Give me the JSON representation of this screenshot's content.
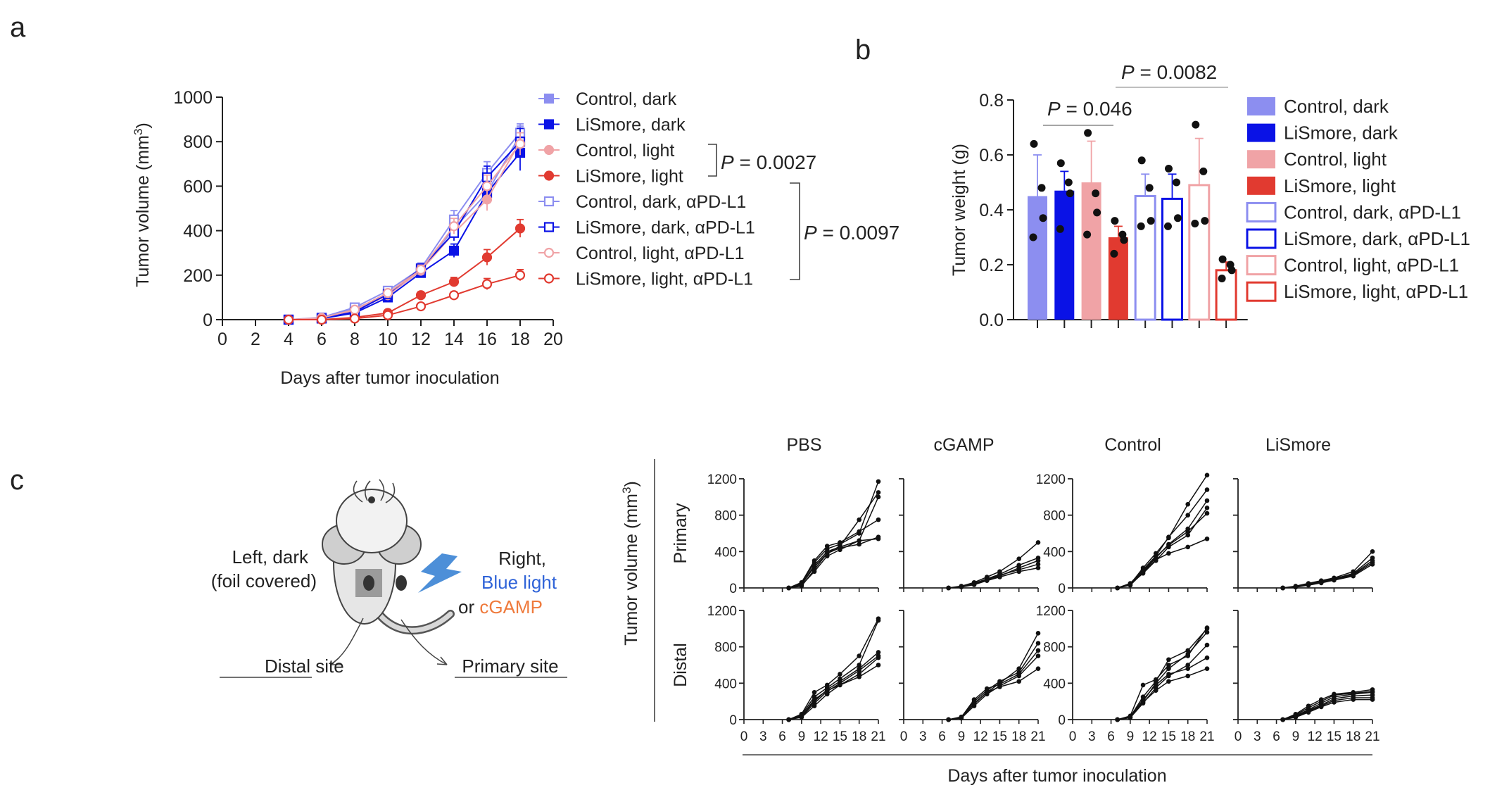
{
  "panel_labels": {
    "a": "a",
    "b": "b",
    "c": "c"
  },
  "colors": {
    "control_dark": "#8c8ef0",
    "lismore_dark": "#0a12e6",
    "control_light": "#f0a3a6",
    "lismore_light": "#e13a30",
    "bolt": "#4d8fd8",
    "orange": "#ef7a3c",
    "blue_text": "#2f63d8"
  },
  "chart_data": [
    {
      "panel": "a",
      "type": "line",
      "xlabel": "Days after tumor inoculation",
      "ylabel_main": "Tumor volume (mm",
      "ylabel_sup": "3",
      "ylabel_close": ")",
      "xlim": [
        0,
        20
      ],
      "ylim": [
        0,
        1000
      ],
      "xticks": [
        0,
        2,
        4,
        6,
        8,
        10,
        12,
        14,
        16,
        18,
        20
      ],
      "yticks": [
        0,
        200,
        400,
        600,
        800,
        1000
      ],
      "x": [
        4,
        6,
        8,
        10,
        12,
        14,
        16,
        18
      ],
      "series": [
        {
          "name": "Control, dark",
          "values": [
            0,
            8,
            50,
            110,
            220,
            410,
            570,
            830
          ],
          "err": [
            0,
            3,
            10,
            20,
            25,
            40,
            50,
            40
          ],
          "color": "#8c8ef0",
          "marker": "square",
          "filled": true
        },
        {
          "name": "LiSmore, dark",
          "values": [
            0,
            5,
            30,
            100,
            210,
            310,
            570,
            750
          ],
          "err": [
            0,
            3,
            8,
            15,
            20,
            30,
            50,
            80
          ],
          "color": "#0a12e6",
          "marker": "square",
          "filled": true
        },
        {
          "name": "Control, light",
          "values": [
            0,
            5,
            40,
            110,
            220,
            390,
            540,
            800
          ],
          "err": [
            0,
            3,
            8,
            15,
            20,
            35,
            50,
            60
          ],
          "color": "#f0a3a6",
          "marker": "circle",
          "filled": true
        },
        {
          "name": "LiSmore, light",
          "values": [
            0,
            0,
            10,
            30,
            110,
            170,
            280,
            410
          ],
          "err": [
            0,
            0,
            5,
            8,
            15,
            20,
            35,
            40
          ],
          "color": "#e13a30",
          "marker": "circle",
          "filled": true
        },
        {
          "name": "Control, dark, αPD-L1",
          "values": [
            0,
            10,
            55,
            130,
            230,
            450,
            660,
            840
          ],
          "err": [
            0,
            3,
            10,
            15,
            25,
            40,
            50,
            40
          ],
          "color": "#8c8ef0",
          "marker": "square",
          "filled": false
        },
        {
          "name": "LiSmore, dark, αPD-L1",
          "values": [
            0,
            6,
            35,
            115,
            230,
            390,
            640,
            800
          ],
          "err": [
            0,
            3,
            8,
            15,
            20,
            35,
            50,
            60
          ],
          "color": "#0a12e6",
          "marker": "square",
          "filled": false
        },
        {
          "name": "Control, light, αPD-L1",
          "values": [
            0,
            8,
            45,
            120,
            225,
            420,
            600,
            790
          ],
          "err": [
            0,
            3,
            8,
            15,
            20,
            35,
            50,
            50
          ],
          "color": "#f0a3a6",
          "marker": "circle",
          "filled": false
        },
        {
          "name": "LiSmore, light, αPD-L1",
          "values": [
            0,
            0,
            5,
            20,
            60,
            110,
            160,
            200
          ],
          "err": [
            0,
            0,
            3,
            5,
            10,
            15,
            25,
            25
          ],
          "color": "#e13a30",
          "marker": "circle",
          "filled": false
        }
      ],
      "annotations": [
        {
          "p": "P",
          "text": " = 0.0027"
        },
        {
          "p": "P",
          "text": " = 0.0097"
        }
      ]
    },
    {
      "panel": "b",
      "type": "bar",
      "ylabel": "Tumor weight (g)",
      "ylim": [
        0,
        0.8
      ],
      "yticks": [
        "0.0",
        "0.2",
        "0.4",
        "0.6",
        "0.8"
      ],
      "categories": [
        "Control, dark",
        "LiSmore, dark",
        "Control, light",
        "LiSmore, light",
        "Control, dark, αPD-L1",
        "LiSmore, dark, αPD-L1",
        "Control, light, αPD-L1",
        "LiSmore, light, αPD-L1"
      ],
      "values": [
        0.45,
        0.47,
        0.5,
        0.3,
        0.45,
        0.44,
        0.49,
        0.18
      ],
      "err": [
        0.15,
        0.07,
        0.15,
        0.04,
        0.08,
        0.09,
        0.17,
        0.03
      ],
      "points": [
        [
          0.64,
          0.48,
          0.37,
          0.3
        ],
        [
          0.57,
          0.5,
          0.46,
          0.33
        ],
        [
          0.68,
          0.46,
          0.39,
          0.31
        ],
        [
          0.36,
          0.31,
          0.29,
          0.24
        ],
        [
          0.58,
          0.48,
          0.36,
          0.34
        ],
        [
          0.55,
          0.5,
          0.37,
          0.34
        ],
        [
          0.71,
          0.54,
          0.36,
          0.35
        ],
        [
          0.22,
          0.2,
          0.18,
          0.15
        ]
      ],
      "colors": [
        "#8c8ef0",
        "#0a12e6",
        "#f0a3a6",
        "#e13a30",
        "#8c8ef0",
        "#0a12e6",
        "#f0a3a6",
        "#e13a30"
      ],
      "filled": [
        true,
        true,
        true,
        true,
        false,
        false,
        false,
        false
      ],
      "annotations": [
        {
          "p": "P",
          "text": " = 0.046"
        },
        {
          "p": "P",
          "text": " = 0.0082"
        }
      ]
    },
    {
      "panel": "c",
      "type": "line",
      "title_cols": [
        "PBS",
        "cGAMP",
        "Control",
        "LiSmore"
      ],
      "row_labels": [
        "Primary",
        "Distal"
      ],
      "ylabel_main": "Tumor volume (mm",
      "ylabel_sup": "3",
      "ylabel_close": ")",
      "xlabel": "Days after tumor inoculation",
      "xticks": [
        0,
        3,
        6,
        9,
        12,
        15,
        18,
        21
      ],
      "xlim": [
        0,
        21
      ],
      "ylim": [
        0,
        1200
      ],
      "yticks": [
        0,
        400,
        800,
        1200
      ],
      "x": [
        7,
        9,
        11,
        13,
        15,
        18,
        21
      ],
      "panels": [
        {
          "name": "PBS Primary",
          "lines": [
            [
              0,
              50,
              280,
              430,
              480,
              600,
              1170
            ],
            [
              0,
              40,
              230,
              380,
              460,
              750,
              1050
            ],
            [
              0,
              30,
              180,
              350,
              420,
              520,
              1000
            ],
            [
              0,
              60,
              300,
              460,
              500,
              620,
              750
            ],
            [
              0,
              20,
              200,
              380,
              440,
              480,
              560
            ],
            [
              0,
              35,
              250,
              400,
              450,
              520,
              540
            ]
          ]
        },
        {
          "name": "cGAMP Primary",
          "lines": [
            [
              0,
              20,
              60,
              120,
              180,
              320,
              500
            ],
            [
              0,
              15,
              50,
              100,
              150,
              250,
              330
            ],
            [
              0,
              10,
              40,
              90,
              130,
              220,
              300
            ],
            [
              0,
              15,
              45,
              95,
              140,
              200,
              260
            ],
            [
              0,
              10,
              35,
              80,
              120,
              180,
              220
            ]
          ]
        },
        {
          "name": "Control Primary",
          "lines": [
            [
              0,
              40,
              220,
              380,
              550,
              920,
              1240
            ],
            [
              0,
              50,
              200,
              350,
              560,
              800,
              1080
            ],
            [
              0,
              30,
              180,
              330,
              480,
              650,
              960
            ],
            [
              0,
              40,
              160,
              300,
              450,
              580,
              880
            ],
            [
              0,
              35,
              190,
              340,
              470,
              620,
              820
            ],
            [
              0,
              30,
              170,
              310,
              380,
              450,
              540
            ]
          ]
        },
        {
          "name": "LiSmore Primary",
          "lines": [
            [
              0,
              20,
              50,
              80,
              110,
              180,
              400
            ],
            [
              0,
              15,
              45,
              75,
              100,
              160,
              330
            ],
            [
              0,
              10,
              40,
              70,
              95,
              150,
              300
            ],
            [
              0,
              12,
              35,
              60,
              90,
              140,
              280
            ],
            [
              0,
              8,
              30,
              55,
              85,
              130,
              260
            ]
          ]
        },
        {
          "name": "PBS Distal",
          "lines": [
            [
              0,
              60,
              300,
              380,
              500,
              700,
              1110
            ],
            [
              0,
              50,
              250,
              350,
              450,
              600,
              1090
            ],
            [
              0,
              40,
              200,
              330,
              420,
              560,
              740
            ],
            [
              0,
              30,
              180,
              310,
              400,
              540,
              700
            ],
            [
              0,
              35,
              220,
              320,
              380,
              500,
              680
            ],
            [
              0,
              25,
              150,
              280,
              380,
              470,
              600
            ]
          ]
        },
        {
          "name": "cGAMP Distal",
          "lines": [
            [
              0,
              20,
              180,
              300,
              400,
              560,
              950
            ],
            [
              0,
              30,
              200,
              320,
              420,
              520,
              840
            ],
            [
              0,
              25,
              220,
              340,
              390,
              500,
              760
            ],
            [
              0,
              15,
              150,
              280,
              370,
              480,
              700
            ],
            [
              0,
              20,
              170,
              300,
              360,
              420,
              560
            ]
          ]
        },
        {
          "name": "Control Distal",
          "lines": [
            [
              0,
              40,
              380,
              440,
              600,
              700,
              1010
            ],
            [
              0,
              30,
              250,
              420,
              660,
              760,
              1000
            ],
            [
              0,
              25,
              200,
              400,
              560,
              720,
              960
            ],
            [
              0,
              20,
              180,
              350,
              480,
              600,
              820
            ],
            [
              0,
              30,
              220,
              380,
              500,
              560,
              680
            ],
            [
              0,
              25,
              190,
              320,
              420,
              480,
              560
            ]
          ]
        },
        {
          "name": "LiSmore Distal",
          "lines": [
            [
              0,
              60,
              150,
              220,
              280,
              300,
              330
            ],
            [
              0,
              50,
              130,
              200,
              270,
              290,
              310
            ],
            [
              0,
              40,
              110,
              180,
              250,
              280,
              300
            ],
            [
              0,
              35,
              100,
              160,
              230,
              260,
              270
            ],
            [
              0,
              30,
              90,
              150,
              210,
              240,
              240
            ],
            [
              0,
              25,
              80,
              140,
              190,
              220,
              220
            ]
          ]
        }
      ]
    }
  ],
  "schematic": {
    "left_line1": "Left, dark",
    "left_line2": "(foil covered)",
    "right_line1": "Right,",
    "right_line2": "Blue light",
    "right_or": "or ",
    "right_cgamp": "cGAMP",
    "distal_site": "Distal site",
    "primary_site": "Primary site"
  }
}
